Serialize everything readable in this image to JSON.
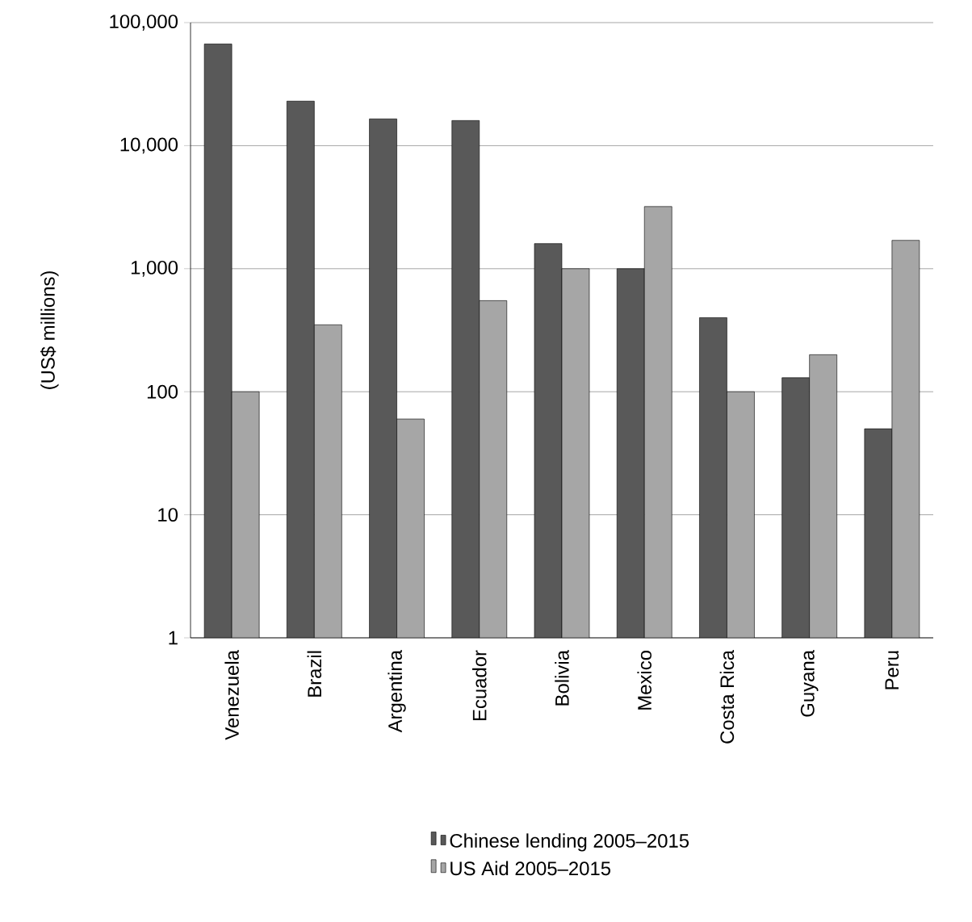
{
  "chart_data": {
    "type": "bar",
    "ylabel": "(US$ millions)",
    "log": "y",
    "grid": "y",
    "legend": "bottom",
    "categories": [
      "Venezuela",
      "Brazil",
      "Argentina",
      "Ecuador",
      "Bolivia",
      "Mexico",
      "Costa Rica",
      "Guyana",
      "Peru"
    ],
    "series": [
      {
        "name": "Chinese lending 2005–2015",
        "color": "#595959",
        "values": [
          67000,
          23000,
          16500,
          16000,
          1600,
          1000,
          400,
          130,
          50
        ]
      },
      {
        "name": "US Aid  2005–2015",
        "color": "#a6a6a6",
        "values": [
          100,
          350,
          60,
          550,
          1000,
          3200,
          100,
          200,
          1700
        ]
      }
    ],
    "ylim": [
      1,
      100000
    ],
    "yticks": [
      1,
      10,
      100,
      {
        "value": 1000,
        "label": "1,000"
      },
      {
        "value": 10000,
        "label": "10,000"
      },
      {
        "value": 100000,
        "label": "100,000"
      }
    ]
  }
}
